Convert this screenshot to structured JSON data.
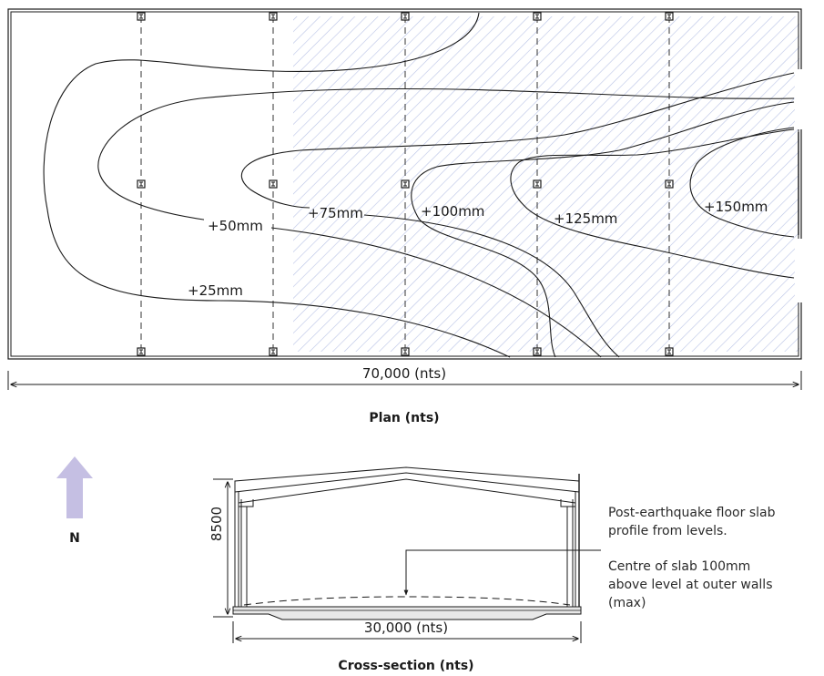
{
  "plan": {
    "contour_labels": {
      "c25": "+25mm",
      "c50": "+50mm",
      "c75": "+75mm",
      "c100": "+100mm",
      "c125": "+125mm",
      "c150": "+150mm"
    },
    "length_dimension": "70,000 (nts)",
    "caption": "Plan (nts)"
  },
  "north_arrow": {
    "label": "N",
    "color": "#c5bfe3"
  },
  "section": {
    "height_dimension": "8500",
    "width_dimension": "30,000 (nts)",
    "caption": "Cross-section (nts)",
    "notes": [
      "Post-earthquake floor slab",
      "profile from levels.",
      "Centre of slab 100mm",
      "above level at outer walls",
      "(max)"
    ]
  },
  "colors": {
    "hatch": "#b9c3e6",
    "line": "#1a1a1a"
  }
}
